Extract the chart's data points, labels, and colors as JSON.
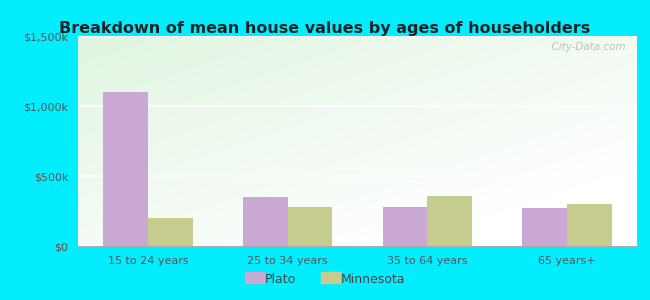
{
  "title": "Breakdown of mean house values by ages of householders",
  "categories": [
    "15 to 24 years",
    "25 to 34 years",
    "35 to 64 years",
    "65 years+"
  ],
  "plato_values": [
    1100000,
    350000,
    280000,
    270000
  ],
  "minnesota_values": [
    200000,
    280000,
    360000,
    300000
  ],
  "plato_color": "#c9a8d4",
  "minnesota_color": "#c5cc8e",
  "ylim": [
    0,
    1500000
  ],
  "yticks": [
    0,
    500000,
    1000000,
    1500000
  ],
  "ytick_labels": [
    "$0",
    "$500k",
    "$1,000k",
    "$1,500k"
  ],
  "bar_width": 0.32,
  "background_outer": "#00eeff",
  "legend_labels": [
    "Plato",
    "Minnesota"
  ],
  "watermark": "  City-Data.com"
}
